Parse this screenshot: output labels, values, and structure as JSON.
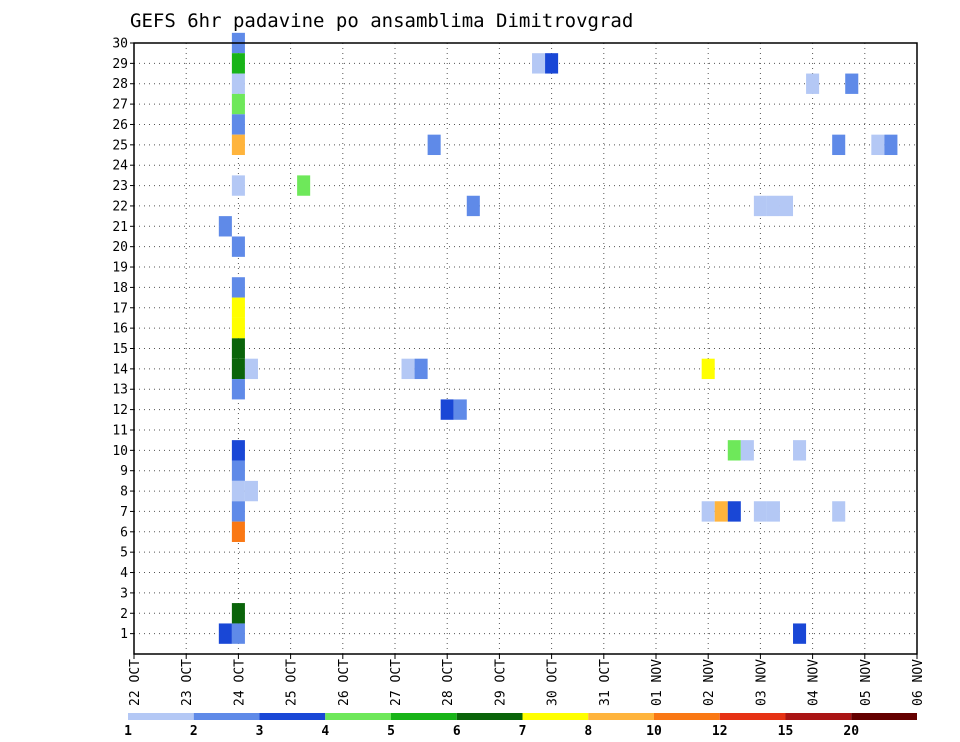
{
  "chart_data": {
    "type": "heatmap",
    "title": "GEFS 6hr padavine po ansamblima Dimitrovgrad",
    "xlabel": "",
    "ylabel": "",
    "x_ticks": [
      "22 OCT",
      "23 OCT",
      "24 OCT",
      "25 OCT",
      "26 OCT",
      "27 OCT",
      "28 OCT",
      "29 OCT",
      "30 OCT",
      "31 OCT",
      "01 NOV",
      "02 NOV",
      "03 NOV",
      "04 NOV",
      "05 NOV",
      "06 NOV"
    ],
    "y_ticks": [
      "1",
      "2",
      "3",
      "4",
      "5",
      "6",
      "7",
      "8",
      "9",
      "10",
      "11",
      "12",
      "13",
      "14",
      "15",
      "16",
      "17",
      "18",
      "19",
      "20",
      "21",
      "22",
      "23",
      "24",
      "25",
      "26",
      "27",
      "28",
      "29",
      "30"
    ],
    "xlim_days": [
      0,
      15
    ],
    "ylim": [
      0,
      30
    ],
    "time_step_hours": 6,
    "grid": true,
    "grid_style": "dotted",
    "x_ref_date": "22 OCT",
    "colorbar": {
      "labels": [
        "1",
        "2",
        "3",
        "4",
        "5",
        "6",
        "7",
        "8",
        "10",
        "12",
        "15",
        "20"
      ],
      "colors": [
        "#b4c8f5",
        "#5f8ae8",
        "#1947d6",
        "#6ee85a",
        "#18b418",
        "#0a640a",
        "#ffff00",
        "#ffb43c",
        "#fa7814",
        "#e63214",
        "#aa1414",
        "#640000"
      ]
    },
    "cells": [
      {
        "member": 30,
        "time": "24 OCT 00Z",
        "value": 2.5
      },
      {
        "member": 29,
        "time": "24 OCT 00Z",
        "value": 5.5
      },
      {
        "member": 28,
        "time": "24 OCT 00Z",
        "value": 1.5
      },
      {
        "member": 27,
        "time": "24 OCT 00Z",
        "value": 4.5
      },
      {
        "member": 26,
        "time": "24 OCT 00Z",
        "value": 2.5
      },
      {
        "member": 25,
        "time": "24 OCT 00Z",
        "value": 9
      },
      {
        "member": 23,
        "time": "24 OCT 00Z",
        "value": 1.5
      },
      {
        "member": 20,
        "time": "24 OCT 00Z",
        "value": 2.5
      },
      {
        "member": 18,
        "time": "24 OCT 00Z",
        "value": 2.5
      },
      {
        "member": 17,
        "time": "24 OCT 00Z",
        "value": 7.5
      },
      {
        "member": 16,
        "time": "24 OCT 00Z",
        "value": 7.5
      },
      {
        "member": 15,
        "time": "24 OCT 00Z",
        "value": 6.5
      },
      {
        "member": 14,
        "time": "24 OCT 00Z",
        "value": 6.5
      },
      {
        "member": 13,
        "time": "24 OCT 00Z",
        "value": 2.5
      },
      {
        "member": 10,
        "time": "24 OCT 00Z",
        "value": 3.5
      },
      {
        "member": 9,
        "time": "24 OCT 00Z",
        "value": 2.5
      },
      {
        "member": 8,
        "time": "24 OCT 00Z",
        "value": 1.5
      },
      {
        "member": 7,
        "time": "24 OCT 00Z",
        "value": 2.5
      },
      {
        "member": 6,
        "time": "24 OCT 00Z",
        "value": 11
      },
      {
        "member": 2,
        "time": "24 OCT 00Z",
        "value": 6.5
      },
      {
        "member": 1,
        "time": "24 OCT 00Z",
        "value": 2.5
      },
      {
        "member": 21,
        "time": "23 OCT 18Z",
        "value": 2.5
      },
      {
        "member": 1,
        "time": "23 OCT 18Z",
        "value": 3.5
      },
      {
        "member": 14,
        "time": "24 OCT 06Z",
        "value": 1.5
      },
      {
        "member": 8,
        "time": "24 OCT 06Z",
        "value": 1.5
      },
      {
        "member": 23,
        "time": "25 OCT 06Z",
        "value": 4.5
      },
      {
        "member": 14,
        "time": "27 OCT 06Z",
        "value": 1.5
      },
      {
        "member": 14,
        "time": "27 OCT 12Z",
        "value": 2.5
      },
      {
        "member": 25,
        "time": "27 OCT 18Z",
        "value": 2.5
      },
      {
        "member": 12,
        "time": "28 OCT 00Z",
        "value": 3.5
      },
      {
        "member": 12,
        "time": "28 OCT 06Z",
        "value": 2.5
      },
      {
        "member": 22,
        "time": "28 OCT 12Z",
        "value": 2.5
      },
      {
        "member": 29,
        "time": "29 OCT 18Z",
        "value": 1.5
      },
      {
        "member": 29,
        "time": "30 OCT 00Z",
        "value": 3.5
      },
      {
        "member": 14,
        "time": "02 NOV 00Z",
        "value": 7.5
      },
      {
        "member": 7,
        "time": "02 NOV 00Z",
        "value": 1.5
      },
      {
        "member": 7,
        "time": "02 NOV 06Z",
        "value": 9
      },
      {
        "member": 10,
        "time": "02 NOV 12Z",
        "value": 4.5
      },
      {
        "member": 7,
        "time": "02 NOV 12Z",
        "value": 3.5
      },
      {
        "member": 10,
        "time": "02 NOV 18Z",
        "value": 1.5
      },
      {
        "member": 22,
        "time": "03 NOV 00Z",
        "value": 1.5
      },
      {
        "member": 22,
        "time": "03 NOV 06Z",
        "value": 1.5
      },
      {
        "member": 22,
        "time": "03 NOV 12Z",
        "value": 1.5
      },
      {
        "member": 7,
        "time": "03 NOV 00Z",
        "value": 1.5
      },
      {
        "member": 7,
        "time": "03 NOV 06Z",
        "value": 1.5
      },
      {
        "member": 10,
        "time": "03 NOV 18Z",
        "value": 1.5
      },
      {
        "member": 1,
        "time": "03 NOV 18Z",
        "value": 3.5
      },
      {
        "member": 28,
        "time": "04 NOV 00Z",
        "value": 1.5
      },
      {
        "member": 25,
        "time": "04 NOV 12Z",
        "value": 2.5
      },
      {
        "member": 7,
        "time": "04 NOV 12Z",
        "value": 1.5
      },
      {
        "member": 28,
        "time": "04 NOV 18Z",
        "value": 2.5
      },
      {
        "member": 25,
        "time": "05 NOV 06Z",
        "value": 1.5
      },
      {
        "member": 25,
        "time": "05 NOV 12Z",
        "value": 2.5
      }
    ]
  }
}
